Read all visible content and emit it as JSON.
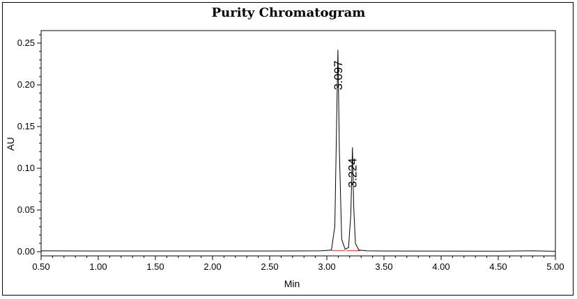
{
  "chart_data": {
    "type": "line",
    "title": "Purity Chromatogram",
    "xlabel": "Min",
    "ylabel": "AU",
    "xlim": [
      0.5,
      5.0
    ],
    "ylim": [
      -0.005,
      0.265
    ],
    "x_ticks": [
      "0.50",
      "1.00",
      "1.50",
      "2.00",
      "2.50",
      "3.00",
      "3.50",
      "4.00",
      "4.50",
      "5.00"
    ],
    "y_ticks": [
      "0.00",
      "0.05",
      "0.10",
      "0.15",
      "0.20",
      "0.25"
    ],
    "grid": false,
    "colors": {
      "trace": "#000000",
      "baseline": "#e03030"
    },
    "series": [
      {
        "x": [
          0.5,
          1.0,
          1.5,
          2.0,
          2.5,
          2.8,
          2.95,
          3.04,
          3.07,
          3.085,
          3.097,
          3.11,
          3.13,
          3.16,
          3.19,
          3.21,
          3.224,
          3.235,
          3.25,
          3.28,
          3.35,
          3.5,
          4.0,
          4.5,
          4.8,
          5.0
        ],
        "values": [
          0.001,
          0.0008,
          0.0008,
          0.0008,
          0.0008,
          0.0009,
          0.001,
          0.002,
          0.03,
          0.15,
          0.242,
          0.12,
          0.015,
          0.003,
          0.005,
          0.045,
          0.125,
          0.055,
          0.01,
          0.002,
          0.001,
          0.0008,
          0.0007,
          0.0006,
          0.001,
          0.0005
        ]
      }
    ],
    "peaks": [
      {
        "label": "3.097",
        "x": 3.097,
        "y": 0.242
      },
      {
        "label": "3.224",
        "x": 3.224,
        "y": 0.125
      }
    ]
  }
}
